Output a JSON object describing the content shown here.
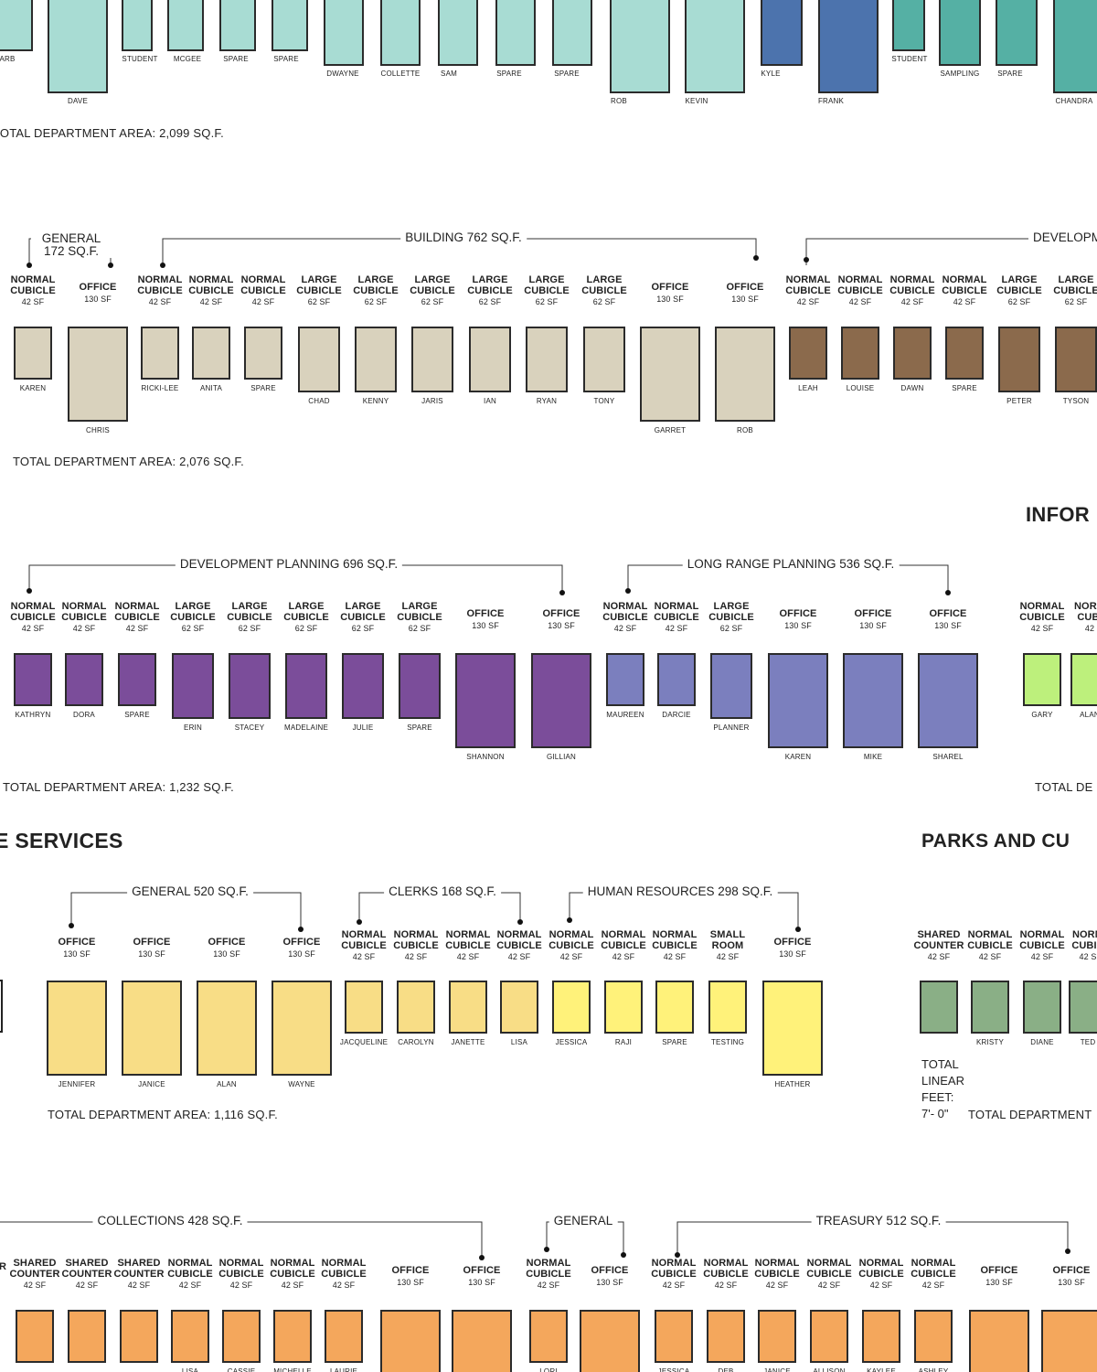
{
  "rows": [
    {
      "desk_names": [
        "DAVE",
        "STUDENT",
        "MCGEE",
        "SPARE",
        "SPARE",
        "DWAYNE",
        "COLLETTE",
        "SAM",
        "SPARE",
        "SPARE",
        "ROB",
        "KEVIN",
        "KYLE",
        "FRANK",
        "STUDENT",
        "SAMPLING",
        "SPARE",
        "CHANDRA"
      ],
      "partial_names": [
        "ARB"
      ],
      "total": "TOTAL DEPARTMENT AREA: 2,099 SQ.F."
    },
    {
      "groups": [
        "GENERAL 172 SQ.F.",
        "BUILDING 762 SQ.F.",
        "DEVELOPMENT ENGIN"
      ],
      "spaces": [
        {
          "type": "NORMAL CUBICLE",
          "sf": "42 SF",
          "name": "KAREN"
        },
        {
          "type": "OFFICE",
          "sf": "130 SF",
          "name": "CHRIS"
        },
        {
          "type": "NORMAL CUBICLE",
          "sf": "42 SF",
          "name": "RICKI-LEE"
        },
        {
          "type": "NORMAL CUBICLE",
          "sf": "42 SF",
          "name": "ANITA"
        },
        {
          "type": "NORMAL CUBICLE",
          "sf": "42 SF",
          "name": "SPARE"
        },
        {
          "type": "LARGE CUBICLE",
          "sf": "62 SF",
          "name": "CHAD"
        },
        {
          "type": "LARGE CUBICLE",
          "sf": "62 SF",
          "name": "KENNY"
        },
        {
          "type": "LARGE CUBICLE",
          "sf": "62 SF",
          "name": "JARIS"
        },
        {
          "type": "LARGE CUBICLE",
          "sf": "62 SF",
          "name": "IAN"
        },
        {
          "type": "LARGE CUBICLE",
          "sf": "62 SF",
          "name": "RYAN"
        },
        {
          "type": "LARGE CUBICLE",
          "sf": "62 SF",
          "name": "TONY"
        },
        {
          "type": "OFFICE",
          "sf": "130 SF",
          "name": "GARRET"
        },
        {
          "type": "OFFICE",
          "sf": "130 SF",
          "name": "ROB"
        },
        {
          "type": "NORMAL CUBICLE",
          "sf": "42 SF",
          "name": "LEAH"
        },
        {
          "type": "NORMAL CUBICLE",
          "sf": "42 SF",
          "name": "LOUISE"
        },
        {
          "type": "NORMAL CUBICLE",
          "sf": "42 SF",
          "name": "DAWN"
        },
        {
          "type": "NORMAL CUBICLE",
          "sf": "42 SF",
          "name": "SPARE"
        },
        {
          "type": "LARGE CUBICLE",
          "sf": "62 SF",
          "name": "PETER"
        },
        {
          "type": "LARGE CUBICLE",
          "sf": "62 SF",
          "name": "TYSON"
        }
      ],
      "total": "TOTAL DEPARTMENT AREA: 2,076 SQ.F."
    },
    {
      "heading": "INFOR",
      "groups": [
        "DEVELOPMENT PLANNING 696 SQ.F.",
        "LONG RANGE PLANNING 536 SQ.F."
      ],
      "spaces": [
        {
          "type": "NORMAL CUBICLE",
          "sf": "42 SF",
          "name": "KATHRYN"
        },
        {
          "type": "NORMAL CUBICLE",
          "sf": "42 SF",
          "name": "DORA"
        },
        {
          "type": "NORMAL CUBICLE",
          "sf": "42 SF",
          "name": "SPARE"
        },
        {
          "type": "LARGE CUBICLE",
          "sf": "62 SF",
          "name": "ERIN"
        },
        {
          "type": "LARGE CUBICLE",
          "sf": "62 SF",
          "name": "STACEY"
        },
        {
          "type": "LARGE CUBICLE",
          "sf": "62 SF",
          "name": "MADELAINE"
        },
        {
          "type": "LARGE CUBICLE",
          "sf": "62 SF",
          "name": "JULIE"
        },
        {
          "type": "LARGE CUBICLE",
          "sf": "62 SF",
          "name": "SPARE"
        },
        {
          "type": "OFFICE",
          "sf": "130 SF",
          "name": "SHANNON"
        },
        {
          "type": "OFFICE",
          "sf": "130 SF",
          "name": "GILLIAN"
        },
        {
          "type": "NORMAL CUBICLE",
          "sf": "42 SF",
          "name": "MAUREEN"
        },
        {
          "type": "NORMAL CUBICLE",
          "sf": "42 SF",
          "name": "DARCIE"
        },
        {
          "type": "LARGE CUBICLE",
          "sf": "62 SF",
          "name": "PLANNER"
        },
        {
          "type": "OFFICE",
          "sf": "130 SF",
          "name": "KAREN"
        },
        {
          "type": "OFFICE",
          "sf": "130 SF",
          "name": "MIKE"
        },
        {
          "type": "OFFICE",
          "sf": "130 SF",
          "name": "SHAREL"
        },
        {
          "type": "NORMAL CUBICLE",
          "sf": "42 SF",
          "name": "GARY"
        },
        {
          "type": "NORM CUBI",
          "sf": "42",
          "name": "ALAN"
        }
      ],
      "total": "TOTAL DEPARTMENT AREA: 1,232 SQ.F.",
      "total_right": "TOTAL DE"
    },
    {
      "heading_left": "E SERVICES",
      "heading_right": "PARKS AND CU",
      "groups": [
        "GENERAL 520 SQ.F.",
        "CLERKS 168 SQ.F.",
        "HUMAN RESOURCES 298 SQ.F."
      ],
      "spaces": [
        {
          "type": "OFFICE",
          "sf": "130 SF",
          "name": "JENNIFER"
        },
        {
          "type": "OFFICE",
          "sf": "130 SF",
          "name": "JANICE"
        },
        {
          "type": "OFFICE",
          "sf": "130 SF",
          "name": "ALAN"
        },
        {
          "type": "OFFICE",
          "sf": "130 SF",
          "name": "WAYNE"
        },
        {
          "type": "NORMAL CUBICLE",
          "sf": "42 SF",
          "name": "JACQUELINE"
        },
        {
          "type": "NORMAL CUBICLE",
          "sf": "42 SF",
          "name": "CAROLYN"
        },
        {
          "type": "NORMAL CUBICLE",
          "sf": "42 SF",
          "name": "JANETTE"
        },
        {
          "type": "NORMAL CUBICLE",
          "sf": "42 SF",
          "name": "LISA"
        },
        {
          "type": "NORMAL CUBICLE",
          "sf": "42 SF",
          "name": "JESSICA"
        },
        {
          "type": "NORMAL CUBICLE",
          "sf": "42 SF",
          "name": "RAJI"
        },
        {
          "type": "NORMAL CUBICLE",
          "sf": "42 SF",
          "name": "SPARE"
        },
        {
          "type": "SMALL ROOM",
          "sf": "42 SF",
          "name": "TESTING"
        },
        {
          "type": "OFFICE",
          "sf": "130 SF",
          "name": "HEATHER"
        },
        {
          "type": "SHARED COUNTER",
          "sf": "42 SF",
          "name": ""
        },
        {
          "type": "NORMAL CUBICLE",
          "sf": "42 SF",
          "name": "KRISTY"
        },
        {
          "type": "NORMAL CUBICLE",
          "sf": "42 SF",
          "name": "DIANE"
        },
        {
          "type": "NORM CUBIC",
          "sf": "42 S",
          "name": "TED"
        }
      ],
      "total": "TOTAL DEPARTMENT AREA: 1,116 SQ.F.",
      "linear_feet": [
        "TOTAL",
        "LINEAR",
        "FEET:",
        "7'- 0\""
      ],
      "total_right": "TOTAL DEPARTMENT"
    },
    {
      "groups": [
        "COLLECTIONS 428 SQ.F.",
        "GENERAL",
        "TREASURY 512 SQ.F."
      ],
      "spaces": [
        {
          "type": "SHARED COUNTER",
          "sf": "42 SF",
          "name": ""
        },
        {
          "type": "SHARED COUNTER",
          "sf": "42 SF",
          "name": ""
        },
        {
          "type": "SHARED COUNTER",
          "sf": "42 SF",
          "name": ""
        },
        {
          "type": "NORMAL CUBICLE",
          "sf": "42 SF",
          "name": "LISA"
        },
        {
          "type": "NORMAL CUBICLE",
          "sf": "42 SF",
          "name": "CASSIE"
        },
        {
          "type": "NORMAL CUBICLE",
          "sf": "42 SF",
          "name": "MICHELLE"
        },
        {
          "type": "NORMAL CUBICLE",
          "sf": "42 SF",
          "name": "LAURIE"
        },
        {
          "type": "OFFICE",
          "sf": "130 SF",
          "name": ""
        },
        {
          "type": "OFFICE",
          "sf": "130 SF",
          "name": ""
        },
        {
          "type": "NORMAL CUBICLE",
          "sf": "42 SF",
          "name": "LORI"
        },
        {
          "type": "OFFICE",
          "sf": "130 SF",
          "name": ""
        },
        {
          "type": "NORMAL CUBICLE",
          "sf": "42 SF",
          "name": "JESSICA"
        },
        {
          "type": "NORMAL CUBICLE",
          "sf": "42 SF",
          "name": "DEB"
        },
        {
          "type": "NORMAL CUBICLE",
          "sf": "42 SF",
          "name": "JANICE"
        },
        {
          "type": "NORMAL CUBICLE",
          "sf": "42 SF",
          "name": "ALLISON"
        },
        {
          "type": "NORMAL CUBICLE",
          "sf": "42 SF",
          "name": "KAYLEE"
        },
        {
          "type": "NORMAL CUBICLE",
          "sf": "42 SF",
          "name": "ASHLEY"
        },
        {
          "type": "OFFICE",
          "sf": "130 SF",
          "name": ""
        },
        {
          "type": "OFFICE",
          "sf": "130 SF",
          "name": ""
        }
      ],
      "partial_label": "R"
    }
  ],
  "colors": {
    "teal": "#a8dcd3",
    "teal_dark": "#55b0a4",
    "blue": "#4c73ad",
    "beige": "#d9d2bd",
    "brown": "#8b6a4c",
    "purple": "#7b4d9a",
    "lavender": "#7b7fbe",
    "lime": "#bdf07c",
    "yellow": "#f8dd86",
    "yellow_bright": "#fff27a",
    "green": "#8aaf86",
    "orange": "#f4a75c"
  }
}
